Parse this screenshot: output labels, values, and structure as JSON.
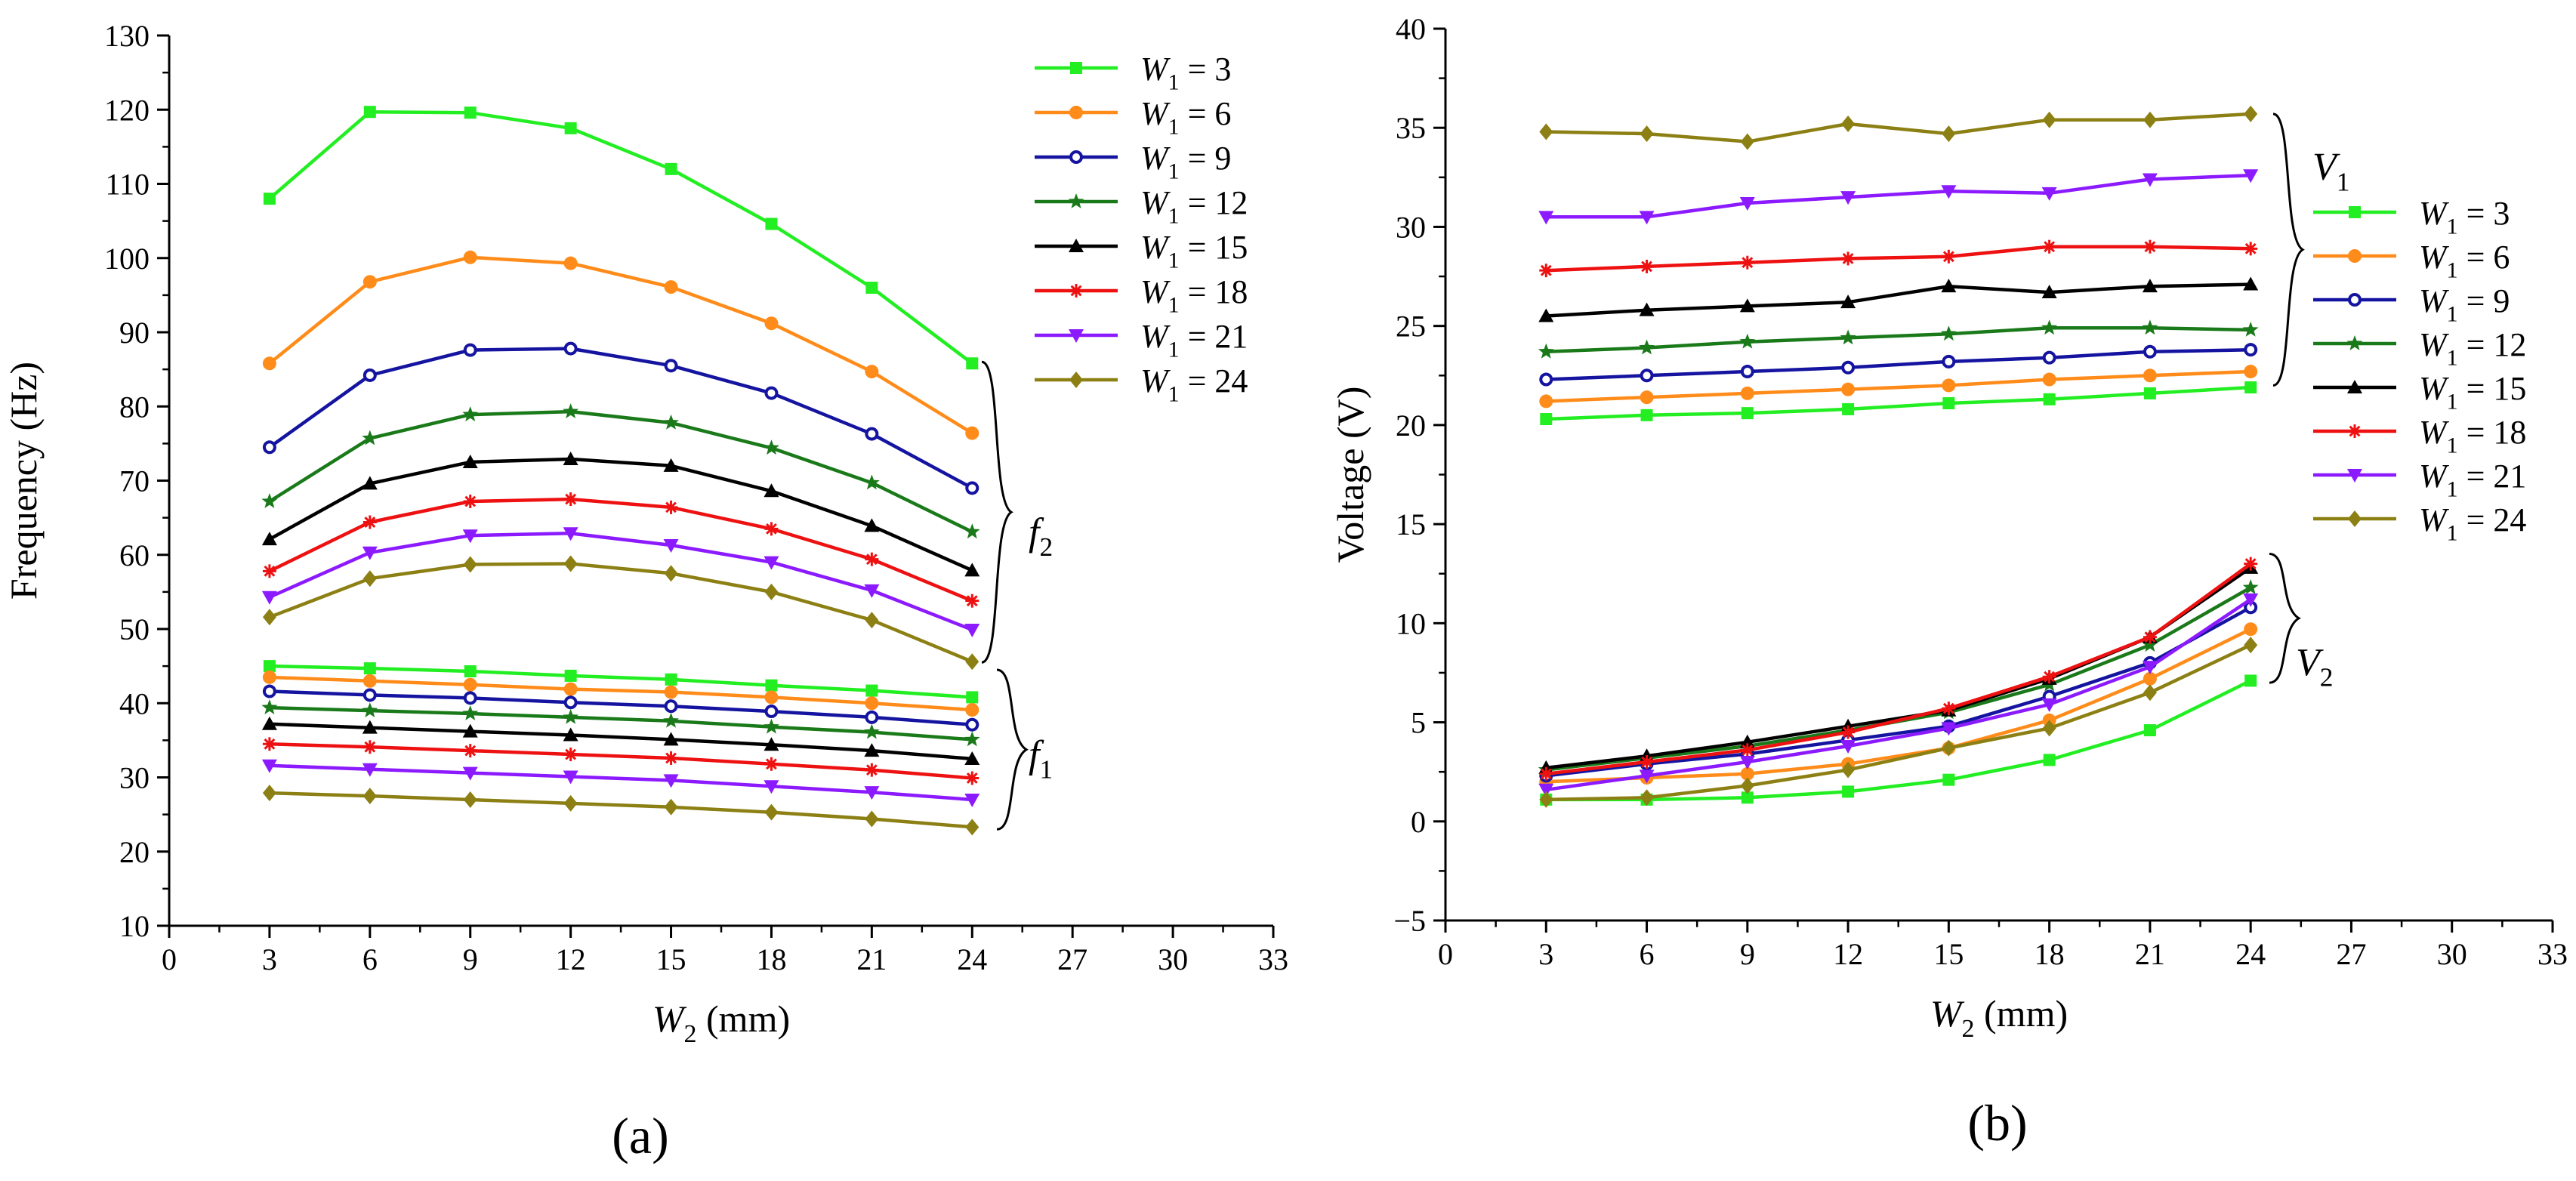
{
  "figure": {
    "panel_a_caption": "(a)",
    "panel_b_caption": "(b)"
  },
  "legend_entries": [
    {
      "w": "W",
      "sub": "1",
      "eq": " = 3",
      "color": "#22ee22",
      "marker": "square"
    },
    {
      "w": "W",
      "sub": "1",
      "eq": " = 6",
      "color": "#ff8c1a",
      "marker": "circle"
    },
    {
      "w": "W",
      "sub": "1",
      "eq": " = 9",
      "color": "#1414a0",
      "marker": "circle-open"
    },
    {
      "w": "W",
      "sub": "1",
      "eq": " = 12",
      "color": "#1a7a1a",
      "marker": "star"
    },
    {
      "w": "W",
      "sub": "1",
      "eq": " = 15",
      "color": "#000000",
      "marker": "triangle-up"
    },
    {
      "w": "W",
      "sub": "1",
      "eq": " = 18",
      "color": "#ee1111",
      "marker": "asterisk"
    },
    {
      "w": "W",
      "sub": "1",
      "eq": " = 21",
      "color": "#8c1aff",
      "marker": "triangle-down"
    },
    {
      "w": "W",
      "sub": "1",
      "eq": " = 24",
      "color": "#8c8014",
      "marker": "diamond"
    }
  ],
  "chart_data": [
    {
      "panel": "(a)",
      "type": "line",
      "xlabel_main": "W",
      "xlabel_sub": "2",
      "xlabel_unit": " (mm)",
      "ylabel": "Frequency (Hz)",
      "xlim": [
        0,
        33
      ],
      "ylim": [
        10,
        130
      ],
      "xticks": [
        0,
        3,
        6,
        9,
        12,
        15,
        18,
        21,
        24,
        27,
        30,
        33
      ],
      "yticks": [
        10,
        20,
        30,
        40,
        50,
        60,
        70,
        80,
        90,
        100,
        110,
        120,
        130
      ],
      "x": [
        3,
        6,
        9,
        12,
        15,
        18,
        21,
        24
      ],
      "annotations": [
        {
          "main": "f",
          "sub": "2"
        },
        {
          "main": "f",
          "sub": "1"
        }
      ],
      "series": [
        {
          "name": "W1 = 3, f2",
          "values": [
            108,
            119.7,
            119.6,
            117.5,
            112,
            104.6,
            96,
            85.8
          ]
        },
        {
          "name": "W1 = 6, f2",
          "values": [
            85.8,
            96.8,
            100.1,
            99.3,
            96.1,
            91.2,
            84.7,
            76.4
          ]
        },
        {
          "name": "W1 = 9, f2",
          "values": [
            74.5,
            84.2,
            87.6,
            87.8,
            85.5,
            81.8,
            76.3,
            69
          ]
        },
        {
          "name": "W1 = 12, f2",
          "values": [
            67.2,
            75.7,
            78.9,
            79.3,
            77.8,
            74.4,
            69.7,
            63.1
          ]
        },
        {
          "name": "W1 = 15, f2",
          "values": [
            62.1,
            69.6,
            72.5,
            72.9,
            72,
            68.6,
            63.9,
            57.9
          ]
        },
        {
          "name": "W1 = 18, f2",
          "values": [
            57.8,
            64.4,
            67.2,
            67.5,
            66.4,
            63.5,
            59.4,
            53.8
          ]
        },
        {
          "name": "W1 = 21, f2",
          "values": [
            54.3,
            60.3,
            62.6,
            62.9,
            61.3,
            59,
            55.2,
            49.9
          ]
        },
        {
          "name": "W1 = 24, f2",
          "values": [
            51.6,
            56.8,
            58.7,
            58.8,
            57.5,
            55,
            51.2,
            45.6
          ]
        },
        {
          "name": "W1 = 3, f1",
          "values": [
            45,
            44.7,
            44.3,
            43.7,
            43.2,
            42.4,
            41.7,
            40.8
          ]
        },
        {
          "name": "W1 = 6, f1",
          "values": [
            43.5,
            43,
            42.5,
            41.9,
            41.5,
            40.8,
            40,
            39.1
          ]
        },
        {
          "name": "W1 = 9, f1",
          "values": [
            41.6,
            41.1,
            40.7,
            40.1,
            39.6,
            38.9,
            38.1,
            37.1
          ]
        },
        {
          "name": "W1 = 12, f1",
          "values": [
            39.4,
            39,
            38.6,
            38.1,
            37.6,
            36.8,
            36.1,
            35.1
          ]
        },
        {
          "name": "W1 = 15, f1",
          "values": [
            37.2,
            36.7,
            36.2,
            35.7,
            35.1,
            34.4,
            33.6,
            32.5
          ]
        },
        {
          "name": "W1 = 18, f1",
          "values": [
            34.5,
            34.1,
            33.6,
            33.1,
            32.6,
            31.8,
            31,
            29.9
          ]
        },
        {
          "name": "W1 = 21, f1",
          "values": [
            31.6,
            31.1,
            30.6,
            30.1,
            29.6,
            28.8,
            28,
            27
          ]
        },
        {
          "name": "W1 = 24, f1",
          "values": [
            27.9,
            27.5,
            27,
            26.5,
            26,
            25.3,
            24.4,
            23.3
          ]
        }
      ]
    },
    {
      "panel": "(b)",
      "type": "line",
      "xlabel_main": "W",
      "xlabel_sub": "2",
      "xlabel_unit": " (mm)",
      "ylabel": "Voltage (V)",
      "xlim": [
        0,
        33
      ],
      "ylim": [
        -5,
        40
      ],
      "xticks": [
        0,
        3,
        6,
        9,
        12,
        15,
        18,
        21,
        24,
        27,
        30,
        33
      ],
      "yticks": [
        -5,
        0,
        5,
        10,
        15,
        20,
        25,
        30,
        35,
        40
      ],
      "x": [
        3,
        6,
        9,
        12,
        15,
        18,
        21,
        24
      ],
      "annotations": [
        {
          "main": "V",
          "sub": "1"
        },
        {
          "main": "V",
          "sub": "2"
        }
      ],
      "series": [
        {
          "name": "W1 = 3, V1",
          "values": [
            20.3,
            20.5,
            20.6,
            20.8,
            21.1,
            21.3,
            21.6,
            21.9
          ]
        },
        {
          "name": "W1 = 6, V1",
          "values": [
            21.2,
            21.4,
            21.6,
            21.8,
            22,
            22.3,
            22.5,
            22.7
          ]
        },
        {
          "name": "W1 = 9, V1",
          "values": [
            22.3,
            22.5,
            22.7,
            22.9,
            23.2,
            23.4,
            23.7,
            23.8
          ]
        },
        {
          "name": "W1 = 12, V1",
          "values": [
            23.7,
            23.9,
            24.2,
            24.4,
            24.6,
            24.9,
            24.9,
            24.8
          ]
        },
        {
          "name": "W1 = 15, V1",
          "values": [
            25.5,
            25.8,
            26,
            26.2,
            27,
            26.7,
            27,
            27.1
          ]
        },
        {
          "name": "W1 = 18, V1",
          "values": [
            27.8,
            28,
            28.2,
            28.4,
            28.5,
            29,
            29,
            28.9
          ]
        },
        {
          "name": "W1 = 21, V1",
          "values": [
            30.5,
            30.5,
            31.2,
            31.5,
            31.8,
            31.7,
            32.4,
            32.6
          ]
        },
        {
          "name": "W1 = 24, V1",
          "values": [
            34.8,
            34.7,
            34.3,
            35.2,
            34.7,
            35.4,
            35.4,
            35.7
          ]
        },
        {
          "name": "W1 = 3, V2",
          "values": [
            1.1,
            1.1,
            1.2,
            1.5,
            2.1,
            3.1,
            4.6,
            7.1
          ]
        },
        {
          "name": "W1 = 6, V2",
          "values": [
            2,
            2.2,
            2.4,
            2.9,
            3.7,
            5.1,
            7.2,
            9.7
          ]
        },
        {
          "name": "W1 = 9, V2",
          "values": [
            2.3,
            2.9,
            3.4,
            4.1,
            4.8,
            6.3,
            8,
            10.8
          ]
        },
        {
          "name": "W1 = 12, V2",
          "values": [
            2.6,
            3.2,
            3.8,
            4.6,
            5.5,
            6.9,
            8.9,
            11.8
          ]
        },
        {
          "name": "W1 = 15, V2",
          "values": [
            2.7,
            3.3,
            4,
            4.8,
            5.6,
            7.2,
            9.3,
            12.8
          ]
        },
        {
          "name": "W1 = 18, V2",
          "values": [
            2.4,
            3,
            3.6,
            4.5,
            5.7,
            7.3,
            9.3,
            13
          ]
        },
        {
          "name": "W1 = 21, V2",
          "values": [
            1.6,
            2.3,
            3,
            3.8,
            4.7,
            5.9,
            7.8,
            11.2
          ]
        },
        {
          "name": "W1 = 24, V2",
          "values": [
            1.1,
            1.2,
            1.8,
            2.6,
            3.7,
            4.7,
            6.5,
            8.9
          ]
        }
      ]
    }
  ]
}
